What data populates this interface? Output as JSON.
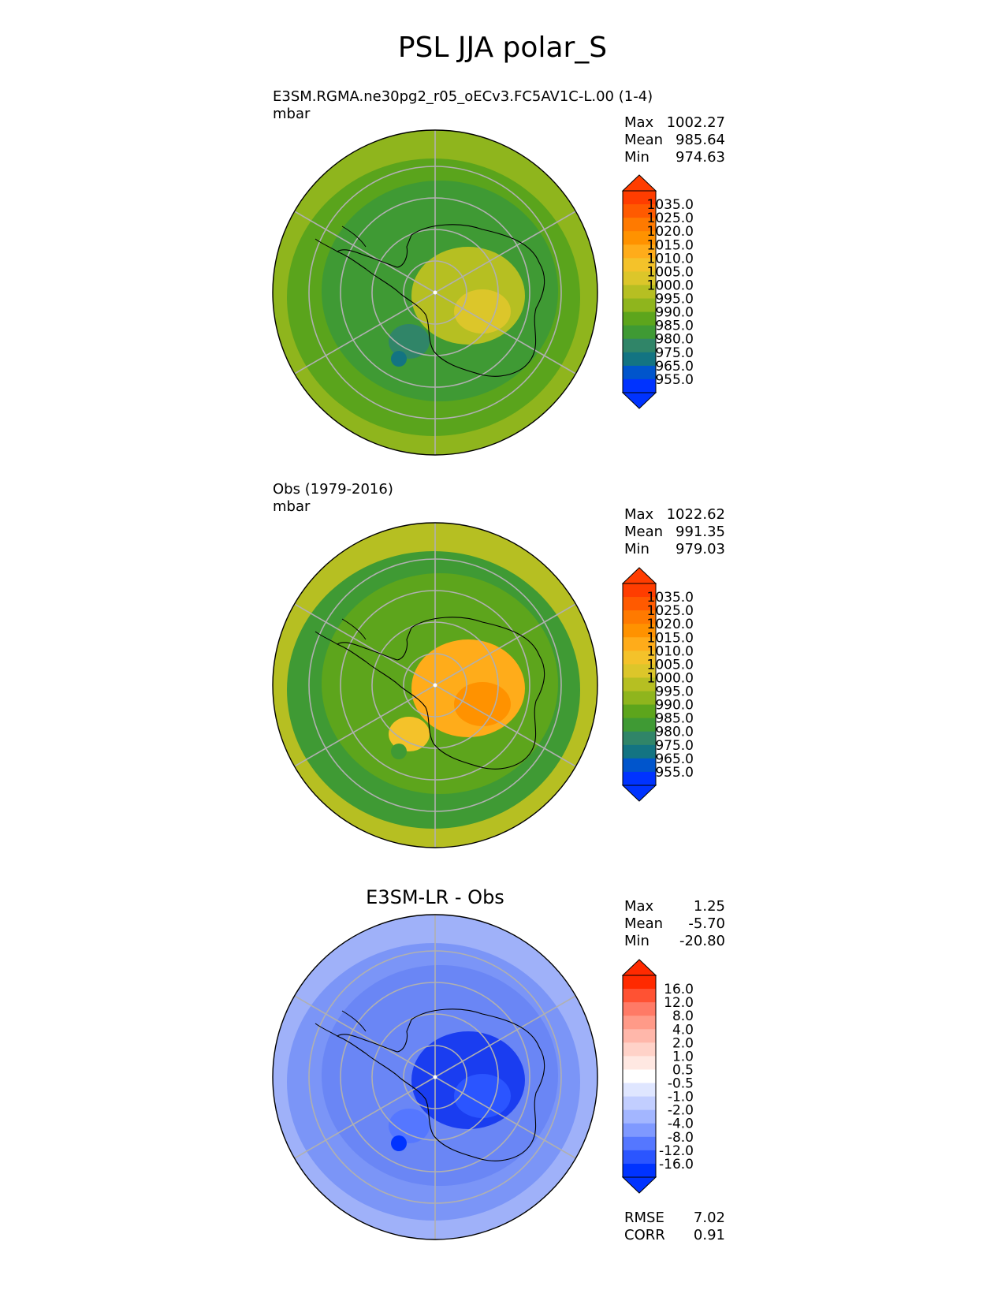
{
  "title": "PSL JJA polar_S",
  "panels": [
    {
      "id": "test",
      "title_left": "E3SM.RGMA.ne30pg2_r05_oECv3.FC5AV1C-L.00 (1-4)",
      "units": "mbar",
      "center_title": "",
      "stats": [
        {
          "label": "Max",
          "value": "1002.27"
        },
        {
          "label": "Mean",
          "value": "985.64"
        },
        {
          "label": "Min",
          "value": "974.63"
        }
      ],
      "colorbar": {
        "ticks": [
          "1035.0",
          "1025.0",
          "1020.0",
          "1015.0",
          "1010.0",
          "1005.0",
          "1000.0",
          "995.0",
          "990.0",
          "985.0",
          "980.0",
          "975.0",
          "965.0",
          "955.0"
        ],
        "colors": [
          "#ff3d00",
          "#ff5a00",
          "#ff7a00",
          "#ff9200",
          "#ffac1a",
          "#f4c22a",
          "#dcc62a",
          "#b6bf22",
          "#8fb51d",
          "#5da51c",
          "#3f9a34",
          "#308568",
          "#137482",
          "#0055cc",
          "#0033ff"
        ]
      },
      "field": {
        "base": "#5aa41c",
        "outer_ring": "#8fb51d",
        "ring": "#3f9a34",
        "center": "#b6bf22",
        "hot": "#dcc62a",
        "low": "#308568",
        "min": "#137482"
      }
    },
    {
      "id": "reference",
      "title_left": "Obs (1979-2016)",
      "units": "mbar",
      "center_title": "",
      "stats": [
        {
          "label": "Max",
          "value": "1022.62"
        },
        {
          "label": "Mean",
          "value": "991.35"
        },
        {
          "label": "Min",
          "value": "979.03"
        }
      ],
      "colorbar": {
        "ticks": [
          "1035.0",
          "1025.0",
          "1020.0",
          "1015.0",
          "1010.0",
          "1005.0",
          "1000.0",
          "995.0",
          "990.0",
          "985.0",
          "980.0",
          "975.0",
          "965.0",
          "955.0"
        ],
        "colors": [
          "#ff3d00",
          "#ff5a00",
          "#ff7a00",
          "#ff9200",
          "#ffac1a",
          "#f4c22a",
          "#dcc62a",
          "#b6bf22",
          "#8fb51d",
          "#5da51c",
          "#3f9a34",
          "#308568",
          "#137482",
          "#0055cc",
          "#0033ff"
        ]
      },
      "field": {
        "base": "#3f9a34",
        "outer_ring": "#b6bf22",
        "ring": "#5da51c",
        "center": "#ffac1a",
        "hot": "#ff9200",
        "low": "#f4c22a",
        "min": "#3f9a34"
      }
    },
    {
      "id": "diff",
      "title_left": "",
      "units": "",
      "center_title": "E3SM-LR - Obs",
      "stats": [
        {
          "label": "Max",
          "value": "1.25"
        },
        {
          "label": "Mean",
          "value": "-5.70"
        },
        {
          "label": "Min",
          "value": "-20.80"
        }
      ],
      "colorbar": {
        "ticks": [
          "16.0",
          "12.0",
          "8.0",
          "4.0",
          "2.0",
          "1.0",
          "0.5",
          "-0.5",
          "-1.0",
          "-2.0",
          "-4.0",
          "-8.0",
          "-12.0",
          "-16.0"
        ],
        "colors": [
          "#ff2a00",
          "#ff5233",
          "#ff7a66",
          "#ff9a88",
          "#ffb7aa",
          "#ffd2c8",
          "#ffe8e2",
          "#ffffff",
          "#dfe6ff",
          "#c2ceff",
          "#a3b6ff",
          "#7f99ff",
          "#5577ff",
          "#2b55ff",
          "#0033ff"
        ]
      },
      "field": {
        "base": "#7b95f7",
        "outer_ring": "#9fb1f9",
        "ring": "#6a86f5",
        "center": "#1a3df0",
        "hot": "#2b55ff",
        "low": "#5577ff",
        "min": "#0033ff"
      },
      "metrics": [
        {
          "label": "RMSE",
          "value": "7.02"
        },
        {
          "label": "CORR",
          "value": "0.91"
        }
      ]
    }
  ]
}
